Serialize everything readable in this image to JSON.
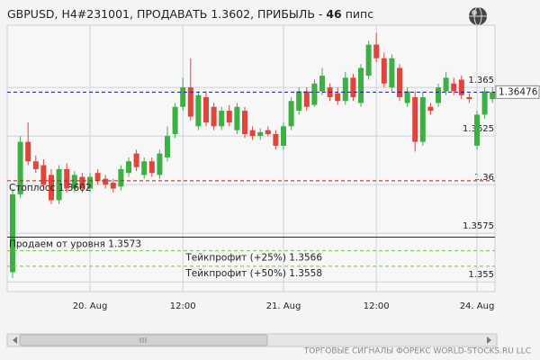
{
  "chart_data": {
    "type": "candlestick",
    "title": "GBPUSD, H4#231001, ПРОДАВАТЬ 1.3602, ПРИБЫЛЬ - ",
    "title_bold": "46",
    "title_suffix": " пипс",
    "footer": "ТОРГОВЫЕ СИГНАЛЫ ФОРЕКС WORLD-STOCKS.RU LLC",
    "categories": [
      null,
      null,
      null,
      null,
      null,
      null,
      null,
      null,
      null,
      null,
      "20. Aug",
      null,
      null,
      null,
      null,
      null,
      null,
      null,
      null,
      null,
      null,
      null,
      "12:00",
      null,
      null,
      null,
      null,
      null,
      null,
      null,
      null,
      null,
      null,
      null,
      null,
      "21. Aug",
      null,
      null,
      null,
      null,
      null,
      null,
      null,
      null,
      null,
      null,
      null,
      "12:00",
      null,
      null,
      null,
      null,
      null,
      null,
      null,
      null,
      null,
      null,
      null,
      null,
      "24. Aug",
      null,
      null
    ],
    "open": [
      1.3555,
      1.3595,
      1.3622,
      1.3612,
      1.361,
      1.3605,
      1.3592,
      1.3608,
      1.3598,
      1.3604,
      1.3598,
      1.3606,
      1.3603,
      1.3601,
      1.3599,
      1.3606,
      1.3616,
      1.3605,
      1.3612,
      1.3605,
      1.3614,
      1.3626,
      1.364,
      1.365,
      1.363,
      1.3645,
      1.364,
      1.363,
      1.3638,
      1.3628,
      1.3638,
      1.3628,
      1.3625,
      1.3628,
      1.3626,
      1.362,
      1.363,
      1.3638,
      1.3648,
      1.3641,
      1.3648,
      1.365,
      1.3647,
      1.3643,
      1.3655,
      1.3642,
      1.3656,
      1.3672,
      1.3665,
      1.365,
      1.366,
      1.3642,
      1.3645,
      1.3622,
      1.364,
      1.3642,
      1.3648,
      1.3652,
      1.3654,
      1.3645,
      1.362,
      1.3636,
      1.3644
    ],
    "high": [
      1.3598,
      1.3625,
      1.3632,
      1.3615,
      1.3613,
      1.3608,
      1.361,
      1.3611,
      1.3607,
      1.3606,
      1.3606,
      1.3608,
      1.3605,
      1.3603,
      1.361,
      1.3614,
      1.3618,
      1.3614,
      1.3614,
      1.3618,
      1.363,
      1.3642,
      1.3655,
      1.3665,
      1.3648,
      1.3648,
      1.3642,
      1.364,
      1.3641,
      1.3642,
      1.364,
      1.363,
      1.3629,
      1.363,
      1.3628,
      1.3632,
      1.3645,
      1.365,
      1.365,
      1.3654,
      1.366,
      1.3652,
      1.365,
      1.3658,
      1.3657,
      1.3662,
      1.3674,
      1.3678,
      1.3668,
      1.3667,
      1.3662,
      1.365,
      1.3648,
      1.3648,
      1.3642,
      1.3652,
      1.3658,
      1.3655,
      1.3656,
      1.3647,
      1.3638,
      1.365,
      1.365
    ],
    "low": [
      1.3552,
      1.3593,
      1.361,
      1.3606,
      1.3598,
      1.359,
      1.359,
      1.3596,
      1.3596,
      1.3596,
      1.3596,
      1.36,
      1.3598,
      1.3596,
      1.3597,
      1.3604,
      1.3607,
      1.3603,
      1.3604,
      1.3603,
      1.3612,
      1.3624,
      1.3638,
      1.3633,
      1.3628,
      1.363,
      1.3628,
      1.3628,
      1.363,
      1.3626,
      1.3624,
      1.3623,
      1.3623,
      1.3625,
      1.3618,
      1.3618,
      1.3628,
      1.3636,
      1.3638,
      1.364,
      1.3646,
      1.3643,
      1.3641,
      1.3641,
      1.3643,
      1.364,
      1.3654,
      1.3663,
      1.365,
      1.3648,
      1.3643,
      1.364,
      1.3617,
      1.362,
      1.3636,
      1.364,
      1.3646,
      1.3646,
      1.3644,
      1.3642,
      1.3618,
      1.3634,
      1.3642
    ],
    "close": [
      1.3595,
      1.3622,
      1.3612,
      1.3608,
      1.36,
      1.3592,
      1.3608,
      1.3598,
      1.3605,
      1.3598,
      1.3604,
      1.3602,
      1.36,
      1.3598,
      1.3608,
      1.3612,
      1.3609,
      1.3612,
      1.3606,
      1.3616,
      1.3625,
      1.364,
      1.365,
      1.3635,
      1.3646,
      1.3632,
      1.363,
      1.3638,
      1.3632,
      1.364,
      1.3626,
      1.3625,
      1.3627,
      1.3626,
      1.362,
      1.363,
      1.3643,
      1.3648,
      1.364,
      1.3652,
      1.3656,
      1.3645,
      1.3643,
      1.3655,
      1.3645,
      1.366,
      1.3672,
      1.3665,
      1.3652,
      1.3665,
      1.3645,
      1.3648,
      1.3622,
      1.3645,
      1.3638,
      1.365,
      1.3655,
      1.3648,
      1.3646,
      1.3644,
      1.3636,
      1.3648,
      1.36476
    ],
    "up_color": "#3cb043",
    "down_color": "#e0443a",
    "ylim": [
      1.3545,
      1.3682
    ],
    "yticks": [
      1.355,
      1.3575,
      1.36,
      1.3625,
      1.365
    ],
    "grid": true,
    "last_price": 1.36476,
    "levels": [
      {
        "label": null,
        "value": 1.36476,
        "color": "#1a1a9a",
        "style": "dashed"
      },
      {
        "label": "Стоплосс 1.3602",
        "value": 1.3602,
        "color": "#b02020",
        "style": "dashed"
      },
      {
        "label": "Продаем от уровня 1.3573",
        "value": 1.3573,
        "color": "#1a1a9a",
        "style": "solid"
      },
      {
        "label": "Тейкпрофит (+25%) 1.3566",
        "value": 1.3566,
        "color": "#7ac143",
        "style": "dashed"
      },
      {
        "label": "Тейкпрофит (+50%) 1.3558",
        "value": 1.3558,
        "color": "#7ac143",
        "style": "dashed"
      }
    ]
  }
}
